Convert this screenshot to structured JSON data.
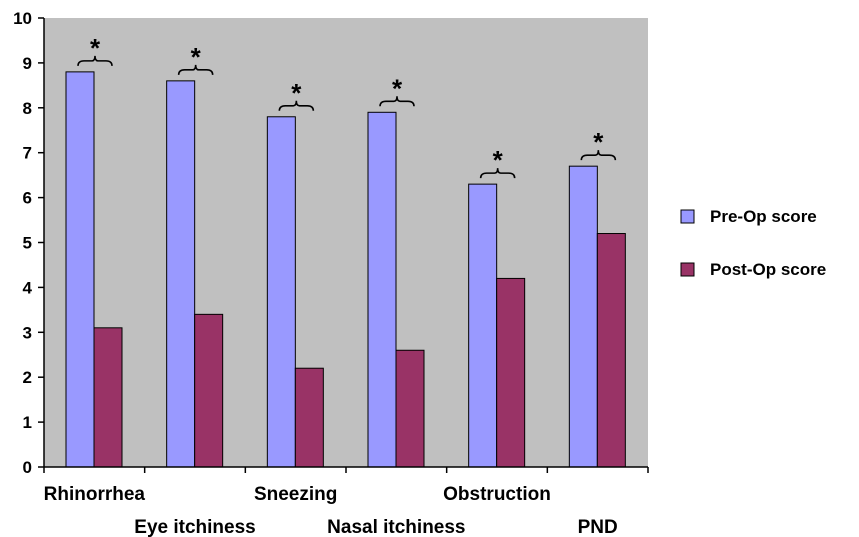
{
  "chart_data": {
    "type": "bar",
    "title": "",
    "xlabel": "",
    "ylabel": "",
    "ylim": [
      0,
      10
    ],
    "yticks": [
      0,
      1,
      2,
      3,
      4,
      5,
      6,
      7,
      8,
      9,
      10
    ],
    "grid": false,
    "legend_position": "right",
    "categories": [
      "Rhinorrhea",
      "Eye itchiness",
      "Sneezing",
      "Nasal itchiness",
      "Obstruction",
      "PND"
    ],
    "series": [
      {
        "name": "Pre-Op score",
        "color": "#9999ff",
        "values": [
          8.8,
          8.6,
          7.8,
          7.9,
          6.3,
          6.7
        ]
      },
      {
        "name": "Post-Op score",
        "color": "#993366",
        "values": [
          3.1,
          3.4,
          2.2,
          2.6,
          4.2,
          5.2
        ]
      }
    ],
    "annotations": [
      {
        "text": "*",
        "category": "Rhinorrhea"
      },
      {
        "text": "*",
        "category": "Eye itchiness"
      },
      {
        "text": "*",
        "category": "Sneezing"
      },
      {
        "text": "*",
        "category": "Nasal itchiness"
      },
      {
        "text": "*",
        "category": "Obstruction"
      },
      {
        "text": "*",
        "category": "PND"
      }
    ],
    "plot_background": "#c0c0c0"
  }
}
